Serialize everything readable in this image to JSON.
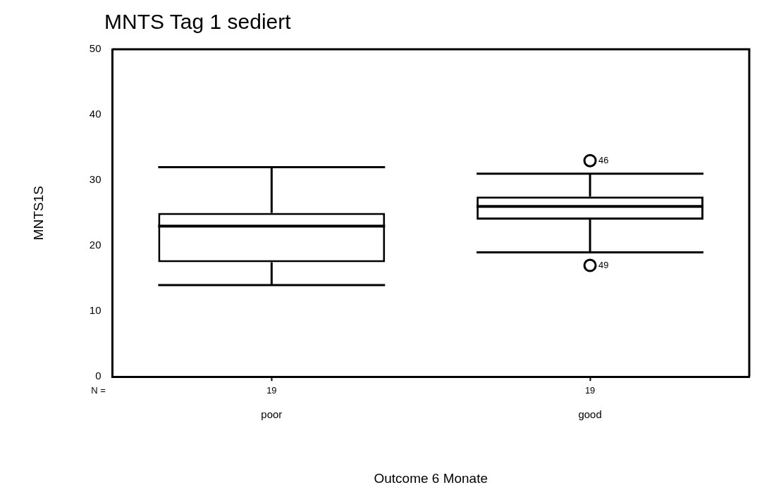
{
  "chart_data": {
    "type": "box",
    "title": "MNTS Tag 1 sediert",
    "xlabel": "Outcome 6 Monate",
    "ylabel": "MNTS1S",
    "categories": [
      "poor",
      "good"
    ],
    "boxes": [
      {
        "low": 14,
        "q1": 17.5,
        "median": 23,
        "q3": 25,
        "high": 32
      },
      {
        "low": 19,
        "q1": 24,
        "median": 26,
        "q3": 27.5,
        "high": 31,
        "outliers": [
          33,
          17
        ]
      }
    ],
    "ylim": [
      0,
      50
    ],
    "yticks": [
      0,
      10,
      20,
      30,
      40,
      50
    ],
    "grid": false,
    "legend": false,
    "marker": "circle",
    "annotations": [
      "N =",
      "19",
      "19",
      "46",
      "49"
    ]
  }
}
